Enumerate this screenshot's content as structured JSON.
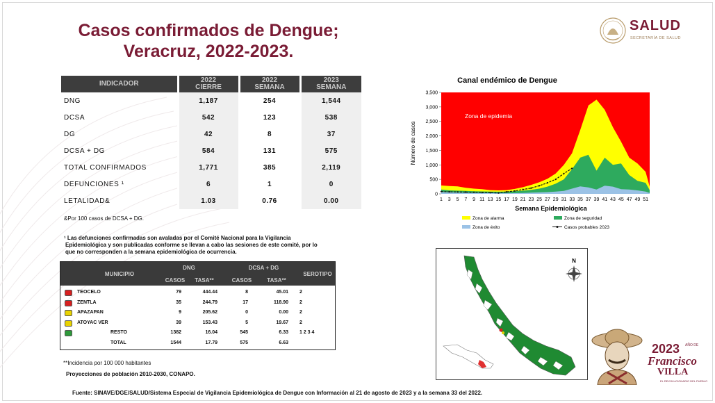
{
  "title_line1": "Casos confirmados de Dengue;",
  "title_line2": "Veracruz, 2022-2023.",
  "logo": {
    "name": "SALUD",
    "sub": "SECRETARÍA DE SALUD"
  },
  "indicator_table": {
    "headers": [
      {
        "l1": "INDICADOR",
        "l2": ""
      },
      {
        "l1": "2022",
        "l2": "CIERRE"
      },
      {
        "l1": "2022",
        "l2": "SEMANA"
      },
      {
        "l1": "2023",
        "l2": "SEMANA"
      }
    ],
    "rows": [
      {
        "label": "DNG",
        "c1": "1,187",
        "c2": "254",
        "c3": "1,544"
      },
      {
        "label": "DCSA",
        "c1": "542",
        "c2": "123",
        "c3": "538"
      },
      {
        "label": "DG",
        "c1": "42",
        "c2": "8",
        "c3": "37"
      },
      {
        "label": "DCSA + DG",
        "c1": "584",
        "c2": "131",
        "c3": "575"
      },
      {
        "label": "TOTAL CONFIRMADOS",
        "c1": "1,771",
        "c2": "385",
        "c3": "2,119"
      },
      {
        "label": "DEFUNCIONES ¹",
        "c1": "6",
        "c2": "1",
        "c3": "0"
      },
      {
        "label": "LETALIDAD&",
        "c1": "1.03",
        "c2": "0.76",
        "c3": "0.00"
      }
    ]
  },
  "note_letalidad": "&Por 100 casos de DCSA + DG.",
  "note_defunciones_l1": "¹ Las defunciones confirmadas son avaladas por el Comité Nacional para la Vigilancia",
  "note_defunciones_l2": "Epidemiológica y son publicadas conforme se llevan a cabo las sesiones de este comité, por lo",
  "note_defunciones_l3": "que no corresponden a la semana epidemiológica de ocurrencia.",
  "muni_table": {
    "h_municipio": "MUNICIPIO",
    "h_dng": "DNG",
    "h_dcsa": "DCSA + DG",
    "h_serotipo": "SEROTIPO",
    "h_casos1": "CASOS",
    "h_tasa1": "TASA**",
    "h_casos2": "CASOS",
    "h_tasa2": "TASA**",
    "rows": [
      {
        "name": "TEOCELO",
        "color": "#d81f1f",
        "casos1": "79",
        "tasa1": "444.44",
        "casos2": "8",
        "tasa2": "45.01",
        "sero": "2"
      },
      {
        "name": "ZENTLA",
        "color": "#d81f1f",
        "casos1": "35",
        "tasa1": "244.79",
        "casos2": "17",
        "tasa2": "118.90",
        "sero": "2"
      },
      {
        "name": "APAZAPAN",
        "color": "#e8d200",
        "casos1": "9",
        "tasa1": "205.62",
        "casos2": "0",
        "tasa2": "0.00",
        "sero": "2"
      },
      {
        "name": "ATOYAC VER",
        "color": "#e8d200",
        "casos1": "39",
        "tasa1": "153.43",
        "casos2": "5",
        "tasa2": "19.67",
        "sero": "2"
      },
      {
        "name": "RESTO",
        "color": "#2e9a3a",
        "casos1": "1382",
        "tasa1": "16.04",
        "casos2": "545",
        "tasa2": "6.33",
        "sero": "1  2  3  4"
      },
      {
        "name": "TOTAL",
        "color": "",
        "casos1": "1544",
        "tasa1": "17.79",
        "casos2": "575",
        "tasa2": "6.63",
        "sero": ""
      }
    ]
  },
  "note_incidencia": "**Incidencia por 100 000 habitantes",
  "note_proyecciones": "Proyecciones de población 2010-2030, CONAPO.",
  "footer": "Fuente: SINAVE/DGE/SALUD/Sistema Especial de Vigilancia Epidemiológica de Dengue con Información al 21 de agosto de 2023 y a la semana 33 del 2022.",
  "villa": {
    "year": "2023",
    "small": "AÑO DE",
    "name1": "Francisco",
    "name2": "VILLA",
    "tagline": "EL REVOLUCIONARIO DEL PUEBLO"
  },
  "map": {
    "north": "N"
  },
  "chart_data": {
    "type": "area",
    "title": "Canal endémico de Dengue",
    "xlabel": "Semana Epidemiológica",
    "ylabel": "Número de casos",
    "ylim": [
      0,
      3500
    ],
    "yticks": [
      "0",
      "500",
      "1,000",
      "1,500",
      "2,000",
      "2,500",
      "3,000",
      "3,500"
    ],
    "xticks": [
      "1",
      "3",
      "5",
      "7",
      "9",
      "11",
      "13",
      "15",
      "17",
      "19",
      "21",
      "23",
      "25",
      "27",
      "29",
      "31",
      "33",
      "35",
      "37",
      "39",
      "41",
      "43",
      "45",
      "47",
      "49",
      "51"
    ],
    "annotation": "Zona de epidemia",
    "colors": {
      "epidemia": "#ff0000",
      "alarma": "#ffff00",
      "seguridad": "#2eaa5e",
      "exito": "#9bc2e6",
      "probables": "#111111"
    },
    "weeks": [
      1,
      3,
      5,
      7,
      9,
      11,
      13,
      15,
      17,
      19,
      21,
      23,
      25,
      27,
      29,
      31,
      33,
      35,
      37,
      39,
      41,
      43,
      45,
      47,
      49,
      51,
      52
    ],
    "series": [
      {
        "name": "Zona de alarma",
        "values": [
          290,
          270,
          260,
          210,
          180,
          160,
          130,
          120,
          130,
          170,
          230,
          310,
          400,
          520,
          700,
          1000,
          1400,
          2200,
          3050,
          3250,
          2900,
          2300,
          1800,
          1250,
          1050,
          760,
          250
        ]
      },
      {
        "name": "Zona de seguridad",
        "values": [
          150,
          120,
          110,
          100,
          90,
          85,
          80,
          75,
          80,
          90,
          110,
          140,
          180,
          250,
          350,
          500,
          850,
          1250,
          1350,
          800,
          1250,
          1000,
          1050,
          650,
          450,
          380,
          130
        ]
      },
      {
        "name": "Zona de éxito",
        "values": [
          60,
          50,
          40,
          35,
          30,
          28,
          25,
          22,
          22,
          25,
          30,
          40,
          50,
          60,
          80,
          100,
          180,
          260,
          220,
          150,
          280,
          250,
          160,
          150,
          120,
          80,
          30
        ]
      },
      {
        "name": "Casos probables 2023",
        "values": [
          80,
          70,
          65,
          60,
          55,
          45,
          40,
          30,
          70,
          100,
          150,
          200,
          280,
          380,
          500,
          700,
          880
        ]
      }
    ],
    "legend": [
      "Zona de alarma",
      "Zona de seguridad",
      "Zona de éxito",
      "Casos probables 2023"
    ]
  }
}
